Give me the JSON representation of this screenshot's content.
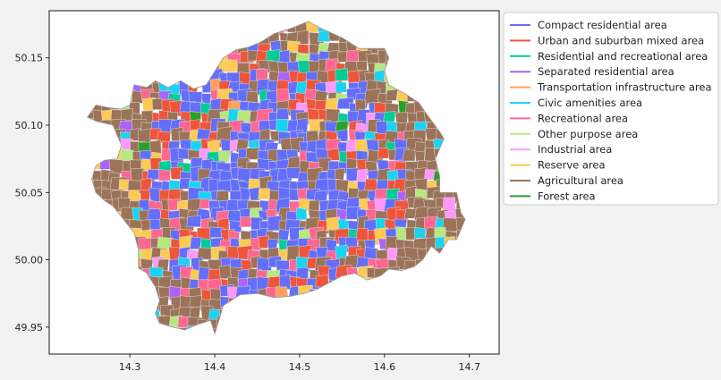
{
  "chart_data": {
    "type": "choropleth-map",
    "title": "",
    "xlabel": "",
    "ylabel": "",
    "xlim": [
      14.205,
      14.735
    ],
    "ylim": [
      49.93,
      50.185
    ],
    "x_ticks": [
      "14.3",
      "14.4",
      "14.5",
      "14.6",
      "14.7"
    ],
    "x_tick_values": [
      14.3,
      14.4,
      14.5,
      14.6,
      14.7
    ],
    "y_ticks": [
      "50.15",
      "50.10",
      "50.05",
      "50.00",
      "49.95"
    ],
    "y_tick_values": [
      50.15,
      50.1,
      50.05,
      50.0,
      49.95
    ],
    "grid": false,
    "legend_position": "upper-right outside",
    "legend": [
      {
        "label": "Compact residential area",
        "color": "#636efa"
      },
      {
        "label": "Urban and suburban mixed area",
        "color": "#ef553b"
      },
      {
        "label": "Residential and recreational area",
        "color": "#00cc96"
      },
      {
        "label": "Separated residential area",
        "color": "#ab63fa"
      },
      {
        "label": "Transportation infrastructure area",
        "color": "#ffa15a"
      },
      {
        "label": "Civic amenities area",
        "color": "#19d3f3"
      },
      {
        "label": "Recreational area",
        "color": "#ff6692"
      },
      {
        "label": "Other purpose area",
        "color": "#b6e880"
      },
      {
        "label": "Industrial area",
        "color": "#ff97ff"
      },
      {
        "label": "Reserve area",
        "color": "#fecb52"
      },
      {
        "label": "Agricultural area",
        "color": "#9c7358"
      },
      {
        "label": "Forest area",
        "color": "#2ca02c"
      }
    ],
    "boundary_lonlat": [
      [
        14.26,
        50.115
      ],
      [
        14.275,
        50.113
      ],
      [
        14.29,
        50.112
      ],
      [
        14.3,
        50.115
      ],
      [
        14.305,
        50.13
      ],
      [
        14.32,
        50.128
      ],
      [
        14.33,
        50.133
      ],
      [
        14.345,
        50.128
      ],
      [
        14.36,
        50.133
      ],
      [
        14.375,
        50.127
      ],
      [
        14.39,
        50.13
      ],
      [
        14.41,
        50.15
      ],
      [
        14.425,
        50.156
      ],
      [
        14.44,
        50.158
      ],
      [
        14.455,
        50.162
      ],
      [
        14.47,
        50.168
      ],
      [
        14.49,
        50.172
      ],
      [
        14.51,
        50.177
      ],
      [
        14.525,
        50.172
      ],
      [
        14.55,
        50.165
      ],
      [
        14.57,
        50.157
      ],
      [
        14.6,
        50.157
      ],
      [
        14.605,
        50.15
      ],
      [
        14.6,
        50.14
      ],
      [
        14.605,
        50.13
      ],
      [
        14.625,
        50.123
      ],
      [
        14.64,
        50.117
      ],
      [
        14.65,
        50.108
      ],
      [
        14.665,
        50.095
      ],
      [
        14.67,
        50.09
      ],
      [
        14.66,
        50.075
      ],
      [
        14.665,
        50.062
      ],
      [
        14.665,
        50.05
      ],
      [
        14.685,
        50.05
      ],
      [
        14.69,
        50.035
      ],
      [
        14.695,
        50.03
      ],
      [
        14.685,
        50.015
      ],
      [
        14.675,
        50.015
      ],
      [
        14.665,
        50.005
      ],
      [
        14.655,
        50.01
      ],
      [
        14.645,
        50.0
      ],
      [
        14.635,
        49.995
      ],
      [
        14.62,
        49.992
      ],
      [
        14.605,
        49.993
      ],
      [
        14.595,
        49.988
      ],
      [
        14.58,
        49.985
      ],
      [
        14.565,
        49.99
      ],
      [
        14.55,
        49.988
      ],
      [
        14.535,
        49.983
      ],
      [
        14.52,
        49.978
      ],
      [
        14.505,
        49.975
      ],
      [
        14.49,
        49.973
      ],
      [
        14.47,
        49.972
      ],
      [
        14.45,
        49.975
      ],
      [
        14.43,
        49.974
      ],
      [
        14.41,
        49.966
      ],
      [
        14.405,
        49.955
      ],
      [
        14.4,
        49.945
      ],
      [
        14.395,
        49.955
      ],
      [
        14.38,
        49.952
      ],
      [
        14.365,
        49.948
      ],
      [
        14.35,
        49.95
      ],
      [
        14.335,
        49.953
      ],
      [
        14.33,
        49.96
      ],
      [
        14.335,
        49.97
      ],
      [
        14.33,
        49.98
      ],
      [
        14.32,
        49.99
      ],
      [
        14.31,
        49.994
      ],
      [
        14.31,
        50.008
      ],
      [
        14.305,
        50.02
      ],
      [
        14.295,
        50.028
      ],
      [
        14.28,
        50.04
      ],
      [
        14.27,
        50.044
      ],
      [
        14.26,
        50.05
      ],
      [
        14.255,
        50.06
      ],
      [
        14.26,
        50.07
      ],
      [
        14.27,
        50.074
      ],
      [
        14.285,
        50.075
      ],
      [
        14.29,
        50.085
      ],
      [
        14.28,
        50.1
      ],
      [
        14.26,
        50.103
      ],
      [
        14.25,
        50.106
      ]
    ]
  }
}
